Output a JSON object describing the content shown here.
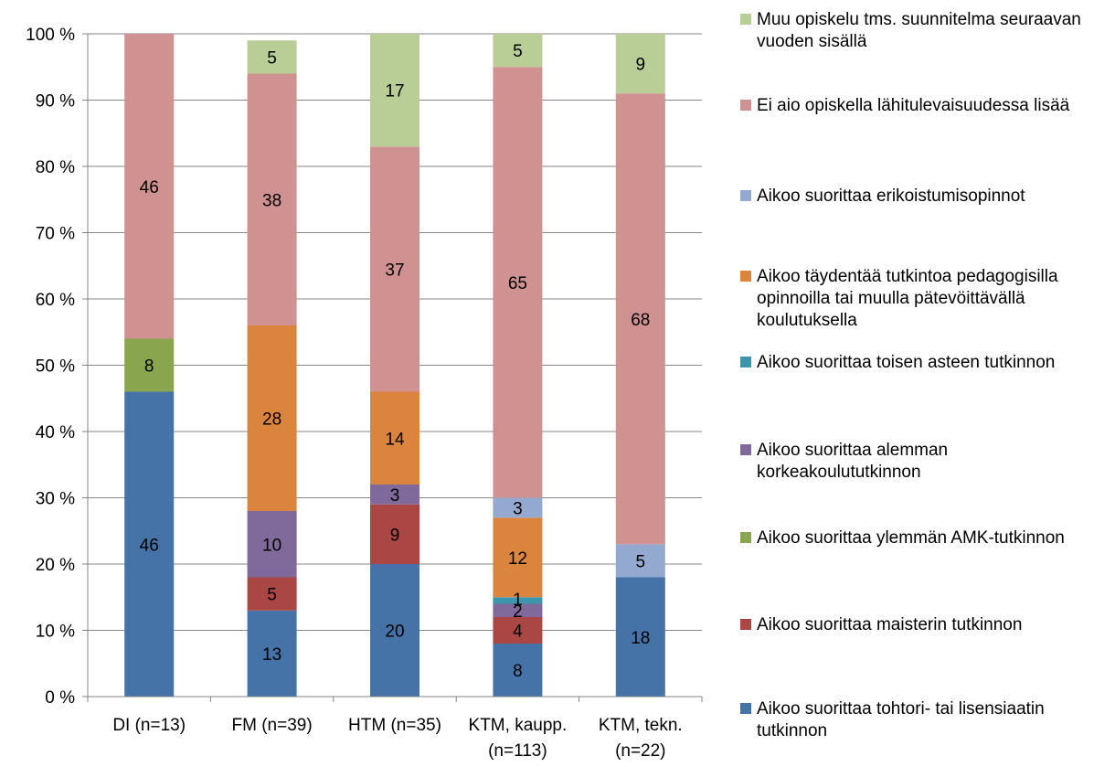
{
  "chart_data": {
    "type": "bar",
    "stacked": true,
    "normalized": true,
    "categories": [
      [
        "DI (n=13)"
      ],
      [
        "FM (n=39)"
      ],
      [
        "HTM (n=35)"
      ],
      [
        "KTM, kaupp.",
        "(n=113)"
      ],
      [
        "KTM, tekn.",
        "(n=22)"
      ]
    ],
    "y_ticks": [
      "0 %",
      "10 %",
      "20 %",
      "30 %",
      "40 %",
      "50 %",
      "60 %",
      "70 %",
      "80 %",
      "90 %",
      "100 %"
    ],
    "ylim": [
      0,
      100
    ],
    "grid": true,
    "legend_position": "right",
    "series": [
      {
        "name": "Aikoo suorittaa tohtori- tai lisensiaatin tutkinnon",
        "color": "#4572A7",
        "values": [
          46,
          13,
          20,
          8,
          18
        ],
        "labels": [
          "46",
          "13",
          "20",
          "8",
          "18"
        ]
      },
      {
        "name": "Aikoo suorittaa maisterin tutkinnon",
        "color": "#AA4643",
        "values": [
          0,
          5,
          9,
          4,
          0
        ],
        "labels": [
          "",
          "5",
          "9",
          "4",
          ""
        ]
      },
      {
        "name": "Aikoo suorittaa ylemmän AMK-tutkinnon",
        "color": "#89A54E",
        "values": [
          8,
          0,
          0,
          0,
          0
        ],
        "labels": [
          "8",
          "",
          "",
          "",
          ""
        ]
      },
      {
        "name": "Aikoo suorittaa alemman korkeakoulututkinnon",
        "color": "#80699B",
        "values": [
          0,
          10,
          3,
          2,
          0
        ],
        "labels": [
          "",
          "10",
          "3",
          "2",
          ""
        ]
      },
      {
        "name": "Aikoo suorittaa toisen asteen tutkinnon",
        "color": "#3D96AE",
        "values": [
          0,
          0,
          0,
          1,
          0
        ],
        "labels": [
          "",
          "",
          "",
          "1",
          ""
        ]
      },
      {
        "name": "Aikoo täydentää tutkintoa pedagogisilla opinnoilla tai muulla pätevöittävällä koulutuksella",
        "color": "#DB843D",
        "values": [
          0,
          28,
          14,
          12,
          0
        ],
        "labels": [
          "",
          "28",
          "14",
          "12",
          ""
        ]
      },
      {
        "name": "Aikoo suorittaa erikoistumisopinnot",
        "color": "#93A9CF",
        "values": [
          0,
          0,
          0,
          3,
          5
        ],
        "labels": [
          "",
          "",
          "",
          "3",
          "5"
        ]
      },
      {
        "name": "Ei aio opiskella lähitulevaisuudessa lisää",
        "color": "#D09191",
        "values": [
          46,
          38,
          37,
          65,
          68
        ],
        "labels": [
          "46",
          "38",
          "37",
          "65",
          "68"
        ]
      },
      {
        "name": "Muu opiskelu tms. suunnitelma seuraavan vuoden sisällä",
        "color": "#B9CD96",
        "values": [
          0,
          5,
          17,
          5,
          9
        ],
        "labels": [
          "",
          "5",
          "17",
          "5",
          "9"
        ]
      }
    ],
    "legend": [
      {
        "name": "Muu opiskelu tms. suunnitelma seuraavan vuoden sisällä",
        "color": "#B9CD96"
      },
      {
        "name": "Ei aio opiskella lähitulevaisuudessa lisää",
        "color": "#D09191"
      },
      {
        "name": "Aikoo suorittaa erikoistumisopinnot",
        "color": "#93A9CF"
      },
      {
        "name": "Aikoo täydentää tutkintoa pedagogisilla opinnoilla tai muulla pätevöittävällä koulutuksella",
        "color": "#DB843D"
      },
      {
        "name": "Aikoo suorittaa toisen asteen tutkinnon",
        "color": "#3D96AE"
      },
      {
        "name": "Aikoo suorittaa alemman korkeakoulututkinnon",
        "color": "#80699B"
      },
      {
        "name": "Aikoo suorittaa ylemmän AMK-tutkinnon",
        "color": "#89A54E"
      },
      {
        "name": "Aikoo suorittaa maisterin tutkinnon",
        "color": "#AA4643"
      },
      {
        "name": "Aikoo suorittaa tohtori- tai lisensiaatin tutkinnon",
        "color": "#4572A7"
      }
    ]
  }
}
